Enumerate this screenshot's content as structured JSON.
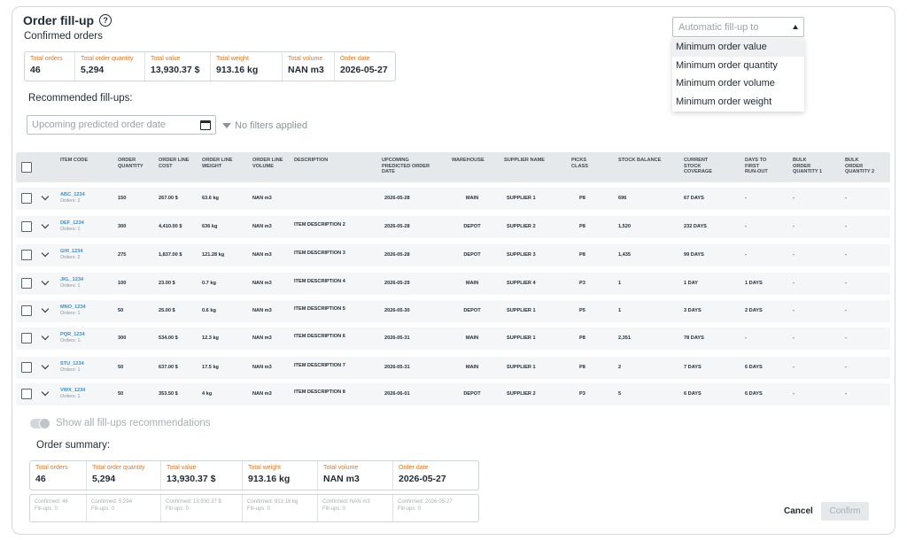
{
  "header": {
    "title": "Order fill-up",
    "subtitle": "Confirmed orders"
  },
  "confirmed_stats": [
    {
      "label": "Total orders",
      "value": "46"
    },
    {
      "label": "Total order quantity",
      "value": "5,294"
    },
    {
      "label": "Total value",
      "value": "13,930.37  $"
    },
    {
      "label": "Total weight",
      "value": "913.16 kg"
    },
    {
      "label": "Total volume",
      "value": "NAN m3"
    },
    {
      "label": "Order date",
      "value": "2026-05-27"
    }
  ],
  "recommended_label": "Recommended fill-ups:",
  "date_filter": {
    "placeholder": "Upcoming predicted order date"
  },
  "filters_text": "No filters applied",
  "auto_fillup": {
    "placeholder": "Automatic fill-up to",
    "options": [
      "Minimum order value",
      "Minimum order quantity",
      "Minimum order volume",
      "Minimum order weight"
    ]
  },
  "table": {
    "headers": {
      "item_code": "ITEM CODE",
      "order_quantity": "ORDER\nQUANTITY",
      "order_line_cost": "ORDER LINE\nCOST",
      "order_line_weight": "ORDER LINE\nWEIGHT",
      "order_line_volume": "ORDER LINE\nVOLUME",
      "description": "DESCRIPTION",
      "upcoming_date": "UPCOMING\nPREDICTED ORDER\nDATE",
      "warehouse": "WAREHOUSE",
      "supplier": "SUPPLIER NAME",
      "picks_class": "PICKS\nCLASS",
      "stock_balance": "STOCK BALANCE",
      "stock_coverage": "CURRENT\nSTOCK\nCOVERAGE",
      "days_run_out": "DAYS TO\nFIRST\nRUN-OUT",
      "bulk1": "BULK\nORDER\nQUANTITY 1",
      "bulk2": "BULK\nORDER\nQUANTITY 2"
    },
    "rows": [
      {
        "code": "ABC_1234",
        "orders": "Orders: 2",
        "qty": "150",
        "cost": "267.00 $",
        "weight": "63.6 kg",
        "volume": "NAN m3",
        "desc": "",
        "date": "2026-05-28",
        "warehouse": "MAIN",
        "supplier": "SUPPLIER 1",
        "picks": "P8",
        "stock": "696",
        "coverage": "67 DAYS",
        "runout": "-",
        "bulk1": "-",
        "bulk2": "-"
      },
      {
        "code": "DEF_1234",
        "orders": "Orders: 1",
        "qty": "300",
        "cost": "4,410.00 $",
        "weight": "636 kg",
        "volume": "NAN m3",
        "desc": "ITEM DESCRIPTION 2",
        "date": "2026-05-28",
        "warehouse": "DEPOT",
        "supplier": "SUPPLIER 2",
        "picks": "P8",
        "stock": "1,520",
        "coverage": "232 DAYS",
        "runout": "-",
        "bulk1": "-",
        "bulk2": "-"
      },
      {
        "code": "GHI_1234",
        "orders": "Orders: 2",
        "qty": "275",
        "cost": "1,837.00 $",
        "weight": "121.28 kg",
        "volume": "NAN m3",
        "desc": "ITEM DESCRIPTION 3",
        "date": "2026-05-28",
        "warehouse": "DEPOT",
        "supplier": "SUPPLIER 3",
        "picks": "P8",
        "stock": "1,435",
        "coverage": "99 DAYS",
        "runout": "-",
        "bulk1": "-",
        "bulk2": "-"
      },
      {
        "code": "JKL_1234",
        "orders": "Orders: 1",
        "qty": "100",
        "cost": "23.00 $",
        "weight": "0.7 kg",
        "volume": "NAN m3",
        "desc": "ITEM DESCRIPTION 4",
        "date": "2026-05-29",
        "warehouse": "MAIN",
        "supplier": "SUPPLIER 4",
        "picks": "P3",
        "stock": "1",
        "coverage": "1 DAY",
        "runout": "1 DAYS",
        "bulk1": "-",
        "bulk2": "-"
      },
      {
        "code": "MNO_1234",
        "orders": "Orders: 1",
        "qty": "50",
        "cost": "25.00 $",
        "weight": "0.6 kg",
        "volume": "NAN m3",
        "desc": "ITEM DESCRIPTION 5",
        "date": "2026-05-30",
        "warehouse": "DEPOT",
        "supplier": "SUPPLIER 1",
        "picks": "P5",
        "stock": "1",
        "coverage": "3 DAYS",
        "runout": "2 DAYS",
        "bulk1": "-",
        "bulk2": "-"
      },
      {
        "code": "PQR_1234",
        "orders": "Orders: 1",
        "qty": "300",
        "cost": "534.00 $",
        "weight": "12.3 kg",
        "volume": "NAN m3",
        "desc": "ITEM DESCRIPTION 6",
        "date": "2026-05-31",
        "warehouse": "MAIN",
        "supplier": "SUPPLIER 1",
        "picks": "P8",
        "stock": "2,351",
        "coverage": "78 DAYS",
        "runout": "-",
        "bulk1": "-",
        "bulk2": "-"
      },
      {
        "code": "STU_1234",
        "orders": "Orders: 1",
        "qty": "50",
        "cost": "637.00 $",
        "weight": "17.5 kg",
        "volume": "NAN m3",
        "desc": "ITEM DESCRIPTION 7",
        "date": "2026-05-31",
        "warehouse": "MAIN",
        "supplier": "SUPPLIER 1",
        "picks": "P8",
        "stock": "2",
        "coverage": "7 DAYS",
        "runout": "6 DAYS",
        "bulk1": "-",
        "bulk2": "-"
      },
      {
        "code": "VWX_1234",
        "orders": "Orders: 1",
        "qty": "50",
        "cost": "353.50 $",
        "weight": "4 kg",
        "volume": "NAN m3",
        "desc": "ITEM DESCRIPTION 8",
        "date": "2026-06-01",
        "warehouse": "DEPOT",
        "supplier": "SUPPLIER 2",
        "picks": "P3",
        "stock": "5",
        "coverage": "6 DAYS",
        "runout": "6 DAYS",
        "bulk1": "-",
        "bulk2": "-"
      }
    ]
  },
  "show_all_label": "Show all fill-ups recommendations",
  "summary_label": "Order summary:",
  "summary_stats": [
    {
      "label": "Total orders",
      "value": "46"
    },
    {
      "label": "Total order quantity",
      "value": "5,294"
    },
    {
      "label": "Total value",
      "value": "13,930.37  $"
    },
    {
      "label": "Total weight",
      "value": "913.16 kg"
    },
    {
      "label": "Total volume",
      "value": "NAN m3"
    },
    {
      "label": "Order date",
      "value": "2026-05-27"
    }
  ],
  "summary_sub": [
    {
      "confirmed": "Confirmed: 46",
      "fillups": "Fill-ups: 0"
    },
    {
      "confirmed": "Confirmed: 5,294",
      "fillups": "Fill-ups: 0"
    },
    {
      "confirmed": "Confirmed: 13,930.37  $",
      "fillups": "Fill-ups: 0"
    },
    {
      "confirmed": "Confirmed: 913.16 kg",
      "fillups": "Fill-ups: 0"
    },
    {
      "confirmed": "Confirmed: NAN m3",
      "fillups": "Fill-ups: 0"
    },
    {
      "confirmed": "Confirmed: 2026-05-27",
      "fillups": "Fill-ups: 0"
    }
  ],
  "actions": {
    "cancel": "Cancel",
    "confirm": "Confirm"
  },
  "colors": {
    "accent_orange": "#e8751a",
    "link_blue": "#3a8fd0",
    "header_bg": "#e6e9eb",
    "row_bg": "#f4f6f7"
  }
}
